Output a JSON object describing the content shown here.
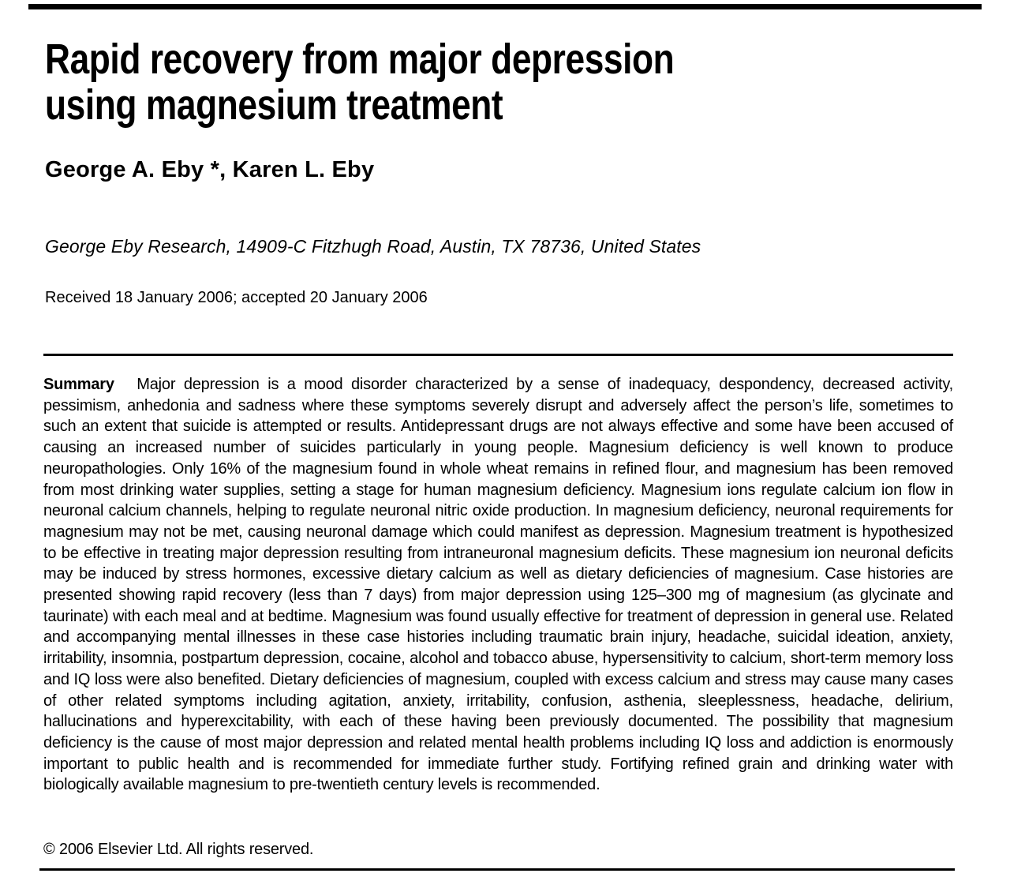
{
  "colors": {
    "background": "#ffffff",
    "text": "#000000",
    "rule": "#000000"
  },
  "article": {
    "title_lines": [
      "Rapid recovery from major depression",
      "using magnesium treatment"
    ],
    "authors": "George A. Eby *, Karen L. Eby",
    "affiliation": "George Eby Research, 14909-C Fitzhugh Road, Austin, TX 78736, United States",
    "received": "Received 18 January 2006; accepted 20 January 2006",
    "summary": {
      "label": "Summary",
      "text": "Major depression is a mood disorder characterized by a sense of inadequacy, despondency, decreased activity, pessimism, anhedonia and sadness where these symptoms severely disrupt and adversely affect the person’s life, sometimes to such an extent that suicide is attempted or results. Antidepressant drugs are not always effective and some have been accused of causing an increased number of suicides particularly in young people. Magnesium deficiency is well known to produce neuropathologies. Only 16% of the magnesium found in whole wheat remains in refined flour, and magnesium has been removed from most drinking water supplies, setting a stage for human magnesium deficiency. Magnesium ions regulate calcium ion flow in neuronal calcium channels, helping to regulate neuronal nitric oxide production. In magnesium deficiency, neuronal requirements for magnesium may not be met, causing neuronal damage which could manifest as depression. Magnesium treatment is hypothesized to be effective in treating major depression resulting from intraneuronal magnesium deficits. These magnesium ion neuronal deficits may be induced by stress hormones, excessive dietary calcium as well as dietary deficiencies of magnesium. Case histories are presented showing rapid recovery (less than 7 days) from major depression using 125–300 mg of magnesium (as glycinate and taurinate) with each meal and at bedtime. Magnesium was found usually effective for treatment of depression in general use. Related and accompanying mental illnesses in these case histories including traumatic brain injury, headache, suicidal ideation, anxiety, irritability, insomnia, postpartum depression, cocaine, alcohol and tobacco abuse, hypersensitivity to calcium, short-term memory loss and IQ loss were also benefited. Dietary deficiencies of magnesium, coupled with excess calcium and stress may cause many cases of other related symptoms including agitation, anxiety, irritability, confusion, asthenia, sleeplessness, headache, delirium, hallucinations and hyperexcitability, with each of these having been previously documented. The possibility that magnesium deficiency is the cause of most major depression and related mental health problems including IQ loss and addiction is enormously important to public health and is recommended for immediate further study. Fortifying refined grain and drinking water with biologically available magnesium to pre-twentieth century levels is recommended.",
      "copyright": "© 2006 Elsevier Ltd. All rights reserved."
    }
  }
}
